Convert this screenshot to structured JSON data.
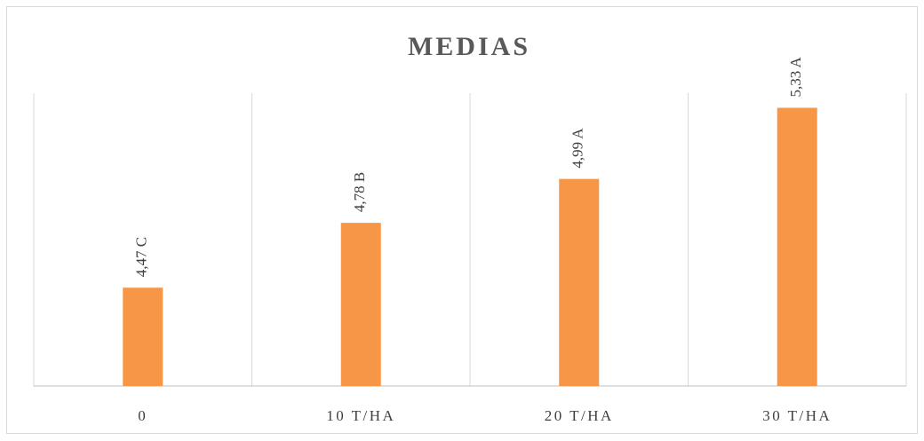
{
  "chart_data": {
    "type": "bar",
    "title": "MEDIAS",
    "categories": [
      "0",
      "10 T/HA",
      "20 T/HA",
      "30 T/HA"
    ],
    "values": [
      4.47,
      4.78,
      4.99,
      5.33
    ],
    "value_labels": [
      "4,47 C",
      "4,78 B",
      "4,99 A",
      "5,33 A"
    ],
    "color": "#f79646",
    "ylim": [
      4,
      5.4
    ]
  }
}
